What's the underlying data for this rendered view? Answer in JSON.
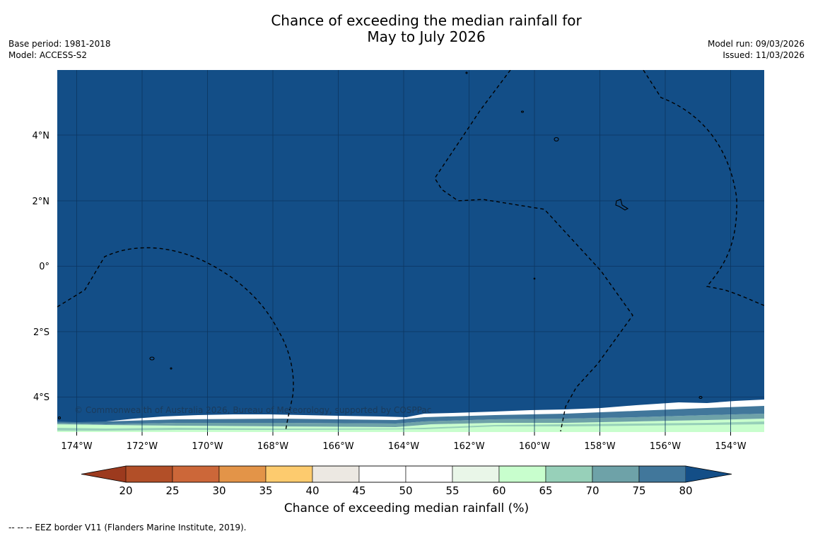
{
  "header": {
    "title_line1": "Chance of exceeding the median rainfall for",
    "title_line2": "May to July 2026",
    "base_period": "Base period: 1981-2018",
    "model": "Model: ACCESS-S2",
    "model_run": "Model run: 09/03/2026",
    "issued": "Issued: 11/03/2026"
  },
  "map": {
    "copyright": "© Commonwealth of Australia 2026, Bureau of Meteorology, supported by COSPPac",
    "lon_ticks": [
      "174°W",
      "172°W",
      "170°W",
      "168°W",
      "166°W",
      "164°W",
      "162°W",
      "160°W",
      "158°W",
      "156°W",
      "154°W"
    ],
    "lat_ticks": [
      "4°N",
      "2°N",
      "0°",
      "2°S",
      "4°S"
    ],
    "dominant_category": "80",
    "colors": {
      "ocean_fill": "#134e87",
      "gridline": "#0c3560"
    }
  },
  "colorbar": {
    "label": "Chance of exceeding median rainfall (%)",
    "ticks": [
      "20",
      "25",
      "30",
      "35",
      "40",
      "45",
      "50",
      "55",
      "60",
      "65",
      "70",
      "75",
      "80"
    ],
    "colors": [
      "#9c3a1e",
      "#b24f28",
      "#cc6739",
      "#e39448",
      "#fdcb6e",
      "#ece8e2",
      "#ffffff",
      "#ffffff",
      "#e9f6e8",
      "#c8fecd",
      "#97d0b9",
      "#6ea2a8",
      "#41779b",
      "#134e87"
    ]
  },
  "footer": {
    "note": "--  --  -- EEZ border V11 (Flanders Marine Institute, 2019)."
  }
}
